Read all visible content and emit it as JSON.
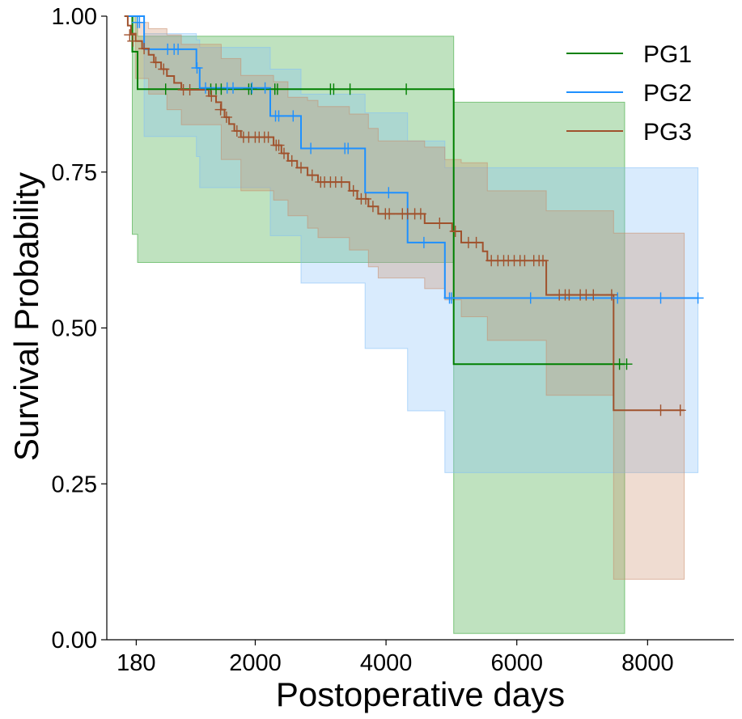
{
  "chart_data": {
    "type": "line",
    "title": "",
    "xlabel": "Postoperative days",
    "ylabel": "Survival Probability",
    "xlim": [
      -270,
      9320
    ],
    "ylim": [
      0,
      1
    ],
    "x_ticks": [
      180,
      2000,
      4000,
      6000,
      8000
    ],
    "x_tick_labels": [
      "180",
      "2000",
      "4000",
      "6000",
      "8000"
    ],
    "y_ticks": [
      0,
      0.25,
      0.5,
      0.75,
      1.0
    ],
    "y_tick_labels": [
      "0.00",
      "0.25",
      "0.50",
      "0.75",
      "1.00"
    ],
    "grid": false,
    "legend_position": "top-right",
    "series": [
      {
        "name": "PG1",
        "color": "#008000",
        "band_color": "#2ca02c",
        "steps": [
          [
            0,
            1.0
          ],
          [
            120,
            0.943
          ],
          [
            200,
            0.883
          ],
          [
            5035,
            0.442
          ],
          [
            7650,
            0.442
          ]
        ],
        "ci_lower": [
          [
            0,
            1.0
          ],
          [
            120,
            0.65
          ],
          [
            200,
            0.605
          ],
          [
            5035,
            0.01
          ],
          [
            7650,
            0.01
          ]
        ],
        "ci_upper": [
          [
            0,
            1.0
          ],
          [
            120,
            1.0
          ],
          [
            200,
            0.968
          ],
          [
            5035,
            0.862
          ],
          [
            7650,
            0.862
          ]
        ],
        "censored": [
          [
            630,
            0.883
          ],
          [
            1320,
            0.883
          ],
          [
            1400,
            0.883
          ],
          [
            1480,
            0.883
          ],
          [
            1900,
            0.883
          ],
          [
            1940,
            0.883
          ],
          [
            2300,
            0.883
          ],
          [
            2340,
            0.883
          ],
          [
            3150,
            0.883
          ],
          [
            3200,
            0.883
          ],
          [
            3450,
            0.883
          ],
          [
            4310,
            0.883
          ],
          [
            7570,
            0.442
          ],
          [
            7680,
            0.442
          ]
        ]
      },
      {
        "name": "PG2",
        "color": "#1e90ff",
        "band_color": "#80bdf7",
        "steps": [
          [
            0,
            1.0
          ],
          [
            300,
            0.947
          ],
          [
            1100,
            0.917
          ],
          [
            1150,
            0.885
          ],
          [
            2230,
            0.84
          ],
          [
            2700,
            0.788
          ],
          [
            3680,
            0.717
          ],
          [
            4330,
            0.637
          ],
          [
            4900,
            0.548
          ],
          [
            8770,
            0.548
          ]
        ],
        "ci_lower": [
          [
            0,
            1.0
          ],
          [
            300,
            0.807
          ],
          [
            1100,
            0.775
          ],
          [
            1150,
            0.725
          ],
          [
            2230,
            0.648
          ],
          [
            2700,
            0.572
          ],
          [
            3680,
            0.467
          ],
          [
            4330,
            0.367
          ],
          [
            4900,
            0.268
          ],
          [
            8770,
            0.268
          ]
        ],
        "ci_upper": [
          [
            0,
            1.0
          ],
          [
            300,
            0.972
          ],
          [
            1100,
            0.962
          ],
          [
            1150,
            0.95
          ],
          [
            2230,
            0.915
          ],
          [
            2700,
            0.875
          ],
          [
            3680,
            0.845
          ],
          [
            4330,
            0.8
          ],
          [
            4900,
            0.757
          ],
          [
            8770,
            0.757
          ]
        ],
        "censored": [
          [
            200,
            0.99
          ],
          [
            230,
            0.99
          ],
          [
            660,
            0.947
          ],
          [
            760,
            0.947
          ],
          [
            820,
            0.947
          ],
          [
            1110,
            0.917
          ],
          [
            1240,
            0.885
          ],
          [
            1570,
            0.885
          ],
          [
            1660,
            0.885
          ],
          [
            1950,
            0.885
          ],
          [
            2150,
            0.885
          ],
          [
            2310,
            0.84
          ],
          [
            2360,
            0.84
          ],
          [
            2580,
            0.84
          ],
          [
            2850,
            0.788
          ],
          [
            3370,
            0.788
          ],
          [
            3420,
            0.788
          ],
          [
            4040,
            0.717
          ],
          [
            4580,
            0.637
          ],
          [
            4970,
            0.548
          ],
          [
            5000,
            0.548
          ],
          [
            6210,
            0.548
          ],
          [
            7540,
            0.548
          ],
          [
            8200,
            0.548
          ],
          [
            8770,
            0.548
          ]
        ]
      },
      {
        "name": "PG3",
        "color": "#a0522d",
        "band_color": "#c98a68",
        "steps": [
          [
            0,
            1.0
          ],
          [
            50,
            0.985
          ],
          [
            100,
            0.972
          ],
          [
            170,
            0.96
          ],
          [
            270,
            0.948
          ],
          [
            370,
            0.938
          ],
          [
            450,
            0.926
          ],
          [
            560,
            0.915
          ],
          [
            650,
            0.904
          ],
          [
            760,
            0.893
          ],
          [
            870,
            0.882
          ],
          [
            1290,
            0.872
          ],
          [
            1400,
            0.862
          ],
          [
            1480,
            0.85
          ],
          [
            1530,
            0.838
          ],
          [
            1600,
            0.827
          ],
          [
            1680,
            0.816
          ],
          [
            1780,
            0.806
          ],
          [
            2280,
            0.793
          ],
          [
            2400,
            0.78
          ],
          [
            2500,
            0.768
          ],
          [
            2640,
            0.757
          ],
          [
            2800,
            0.745
          ],
          [
            2960,
            0.734
          ],
          [
            3440,
            0.72
          ],
          [
            3560,
            0.707
          ],
          [
            3730,
            0.695
          ],
          [
            3880,
            0.683
          ],
          [
            4590,
            0.668
          ],
          [
            5010,
            0.655
          ],
          [
            5150,
            0.637
          ],
          [
            5480,
            0.623
          ],
          [
            5550,
            0.608
          ],
          [
            6450,
            0.553
          ],
          [
            7480,
            0.368
          ],
          [
            8560,
            0.368
          ]
        ],
        "ci_lower": [
          [
            0,
            1.0
          ],
          [
            170,
            0.9
          ],
          [
            370,
            0.875
          ],
          [
            650,
            0.85
          ],
          [
            870,
            0.826
          ],
          [
            1480,
            0.77
          ],
          [
            1780,
            0.72
          ],
          [
            2280,
            0.705
          ],
          [
            2500,
            0.68
          ],
          [
            2800,
            0.66
          ],
          [
            2960,
            0.645
          ],
          [
            3440,
            0.625
          ],
          [
            3730,
            0.598
          ],
          [
            3880,
            0.58
          ],
          [
            4590,
            0.563
          ],
          [
            4900,
            0.545
          ],
          [
            5150,
            0.518
          ],
          [
            5550,
            0.48
          ],
          [
            6450,
            0.392
          ],
          [
            7480,
            0.097
          ],
          [
            8560,
            0.097
          ]
        ],
        "ci_upper": [
          [
            0,
            1.0
          ],
          [
            170,
            0.99
          ],
          [
            370,
            0.98
          ],
          [
            650,
            0.97
          ],
          [
            870,
            0.955
          ],
          [
            1480,
            0.932
          ],
          [
            1780,
            0.905
          ],
          [
            2280,
            0.895
          ],
          [
            2500,
            0.87
          ],
          [
            2800,
            0.865
          ],
          [
            2960,
            0.855
          ],
          [
            3440,
            0.843
          ],
          [
            3730,
            0.82
          ],
          [
            3880,
            0.8
          ],
          [
            4590,
            0.79
          ],
          [
            4900,
            0.77
          ],
          [
            5150,
            0.765
          ],
          [
            5550,
            0.72
          ],
          [
            6450,
            0.688
          ],
          [
            7480,
            0.652
          ],
          [
            8560,
            0.652
          ]
        ],
        "censored": [
          [
            80,
            0.97
          ],
          [
            130,
            0.96
          ],
          [
            300,
            0.948
          ],
          [
            480,
            0.926
          ],
          [
            600,
            0.915
          ],
          [
            900,
            0.882
          ],
          [
            1000,
            0.882
          ],
          [
            1330,
            0.872
          ],
          [
            1470,
            0.85
          ],
          [
            1560,
            0.838
          ],
          [
            1720,
            0.816
          ],
          [
            1820,
            0.806
          ],
          [
            1900,
            0.806
          ],
          [
            2000,
            0.806
          ],
          [
            2060,
            0.806
          ],
          [
            2140,
            0.806
          ],
          [
            2200,
            0.806
          ],
          [
            2320,
            0.793
          ],
          [
            2360,
            0.793
          ],
          [
            2440,
            0.78
          ],
          [
            2560,
            0.768
          ],
          [
            2700,
            0.757
          ],
          [
            2870,
            0.745
          ],
          [
            3000,
            0.734
          ],
          [
            3060,
            0.734
          ],
          [
            3150,
            0.734
          ],
          [
            3230,
            0.734
          ],
          [
            3320,
            0.734
          ],
          [
            3500,
            0.72
          ],
          [
            3620,
            0.707
          ],
          [
            3690,
            0.707
          ],
          [
            3800,
            0.695
          ],
          [
            3990,
            0.683
          ],
          [
            4050,
            0.683
          ],
          [
            4250,
            0.683
          ],
          [
            4330,
            0.683
          ],
          [
            4440,
            0.683
          ],
          [
            4530,
            0.683
          ],
          [
            4820,
            0.668
          ],
          [
            5060,
            0.655
          ],
          [
            5260,
            0.637
          ],
          [
            5380,
            0.637
          ],
          [
            5610,
            0.608
          ],
          [
            5710,
            0.608
          ],
          [
            5800,
            0.608
          ],
          [
            5870,
            0.608
          ],
          [
            5960,
            0.608
          ],
          [
            6050,
            0.608
          ],
          [
            6120,
            0.608
          ],
          [
            6260,
            0.608
          ],
          [
            6340,
            0.608
          ],
          [
            6400,
            0.608
          ],
          [
            6650,
            0.553
          ],
          [
            6740,
            0.553
          ],
          [
            6800,
            0.553
          ],
          [
            6970,
            0.553
          ],
          [
            7060,
            0.553
          ],
          [
            7170,
            0.553
          ],
          [
            7450,
            0.553
          ],
          [
            8200,
            0.368
          ],
          [
            8500,
            0.368
          ]
        ]
      }
    ]
  }
}
